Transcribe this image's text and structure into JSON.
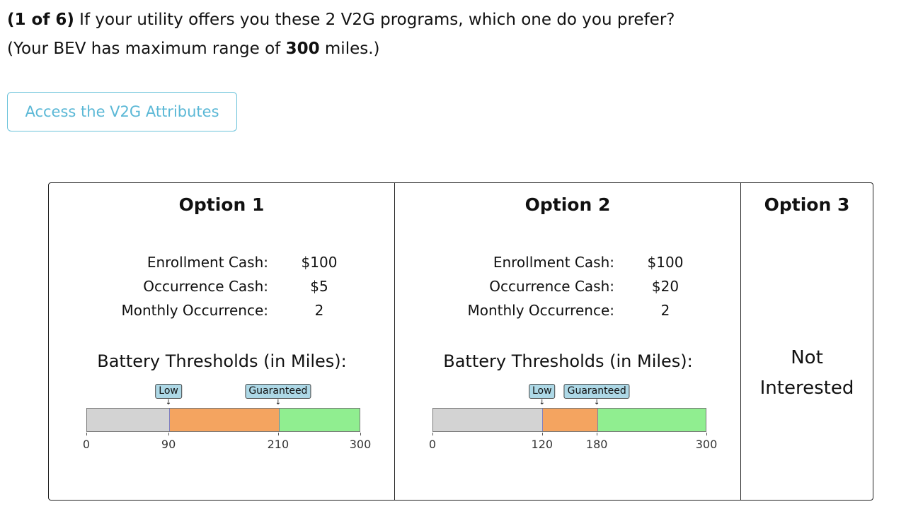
{
  "question": {
    "prefix": "(1 of 6)",
    "text": " If your utility offers you these 2 V2G programs, which one do you prefer?",
    "line2_pre": "(Your BEV has maximum range of ",
    "range": "300",
    "line2_post": " miles.)"
  },
  "attributes_button": "Access the V2G Attributes",
  "colors": {
    "below_low": "#d3d3d3",
    "low_to_guaranteed": "#f4a460",
    "above_guaranteed": "#90ee90",
    "marker_bg": "#add8e6",
    "button": "#5bb8d6"
  },
  "options": [
    {
      "title": "Option 1",
      "rows": [
        {
          "label": "Enrollment Cash:",
          "value": "$100"
        },
        {
          "label": "Occurrence Cash:",
          "value": "$5"
        },
        {
          "label": "Monthly Occurrence:",
          "value": "2"
        }
      ],
      "thresholds_title": "Battery Thresholds (in Miles):",
      "max": 300,
      "low": 90,
      "guaranteed": 210,
      "low_label": "Low",
      "guaranteed_label": "Guaranteed",
      "ticks": [
        "0",
        "90",
        "210",
        "300"
      ]
    },
    {
      "title": "Option 2",
      "rows": [
        {
          "label": "Enrollment Cash:",
          "value": "$100"
        },
        {
          "label": "Occurrence Cash:",
          "value": "$20"
        },
        {
          "label": "Monthly Occurrence:",
          "value": "2"
        }
      ],
      "thresholds_title": "Battery Thresholds (in Miles):",
      "max": 300,
      "low": 120,
      "guaranteed": 180,
      "low_label": "Low",
      "guaranteed_label": "Guaranteed",
      "ticks": [
        "0",
        "120",
        "180",
        "300"
      ]
    },
    {
      "title": "Option 3",
      "line1": "Not",
      "line2": "Interested"
    }
  ]
}
